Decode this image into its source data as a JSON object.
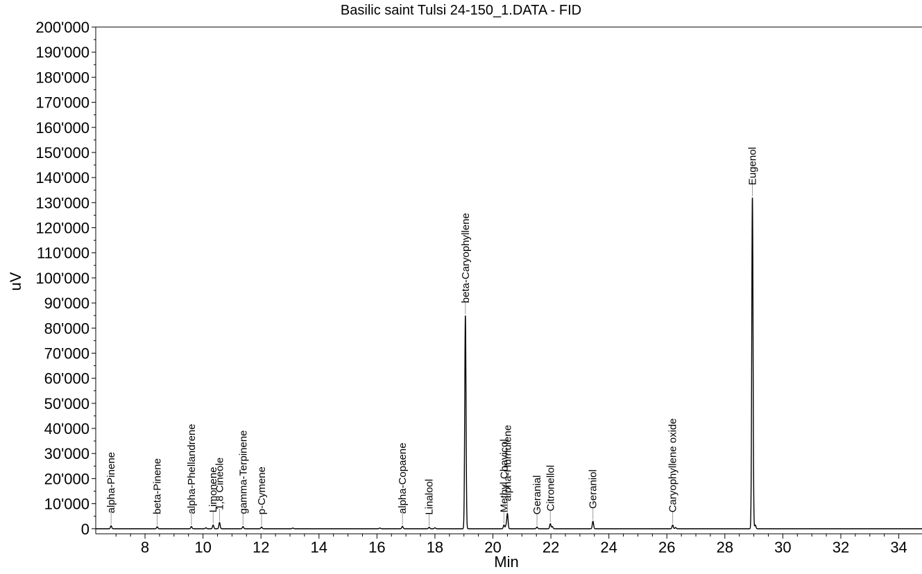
{
  "chart_data": {
    "type": "line",
    "title": "Basilic saint Tulsi 24-150_1.DATA - FID",
    "xlabel": "Min",
    "ylabel": "uV",
    "xlim": [
      6.3,
      34.8
    ],
    "ylim": [
      -2000,
      200000
    ],
    "x_ticks": [
      8,
      10,
      12,
      14,
      16,
      18,
      20,
      22,
      24,
      26,
      28,
      30,
      32,
      34
    ],
    "x_tick_labels": [
      "8",
      "10",
      "12",
      "14",
      "16",
      "18",
      "20",
      "22",
      "24",
      "26",
      "28",
      "30",
      "32",
      "34"
    ],
    "y_ticks": [
      0,
      10000,
      20000,
      30000,
      40000,
      50000,
      60000,
      70000,
      80000,
      90000,
      100000,
      110000,
      120000,
      130000,
      140000,
      150000,
      160000,
      170000,
      180000,
      190000,
      200000
    ],
    "y_tick_labels": [
      "0",
      "10'000",
      "20'000",
      "30'000",
      "40'000",
      "50'000",
      "60'000",
      "70'000",
      "80'000",
      "90'000",
      "100'000",
      "110'000",
      "120'000",
      "130'000",
      "140'000",
      "150'000",
      "160'000",
      "170'000",
      "180'000",
      "190'000",
      "200'000"
    ],
    "grid": false,
    "baseline": 0,
    "color": "#000000",
    "peaks": [
      {
        "name": "alpha-Pinene",
        "rt": 6.83,
        "height": 1200
      },
      {
        "name": "beta-Pinene",
        "rt": 8.42,
        "height": 800
      },
      {
        "name": "alpha-Phellandrene",
        "rt": 9.6,
        "height": 900
      },
      {
        "name": "Limonene",
        "rt": 10.35,
        "height": 1500
      },
      {
        "name": "1,8 Cineole",
        "rt": 10.57,
        "height": 2500
      },
      {
        "name": "gamma-Terpinene",
        "rt": 11.38,
        "height": 900
      },
      {
        "name": "p-Cymene",
        "rt": 12.02,
        "height": 700
      },
      {
        "name": "alpha-Copaene",
        "rt": 16.88,
        "height": 1000
      },
      {
        "name": "Linalool",
        "rt": 17.8,
        "height": 600
      },
      {
        "name": "beta-Caryophyllene",
        "rt": 19.05,
        "height": 85000
      },
      {
        "name": "Methyl Chavicol",
        "rt": 20.38,
        "height": 1500
      },
      {
        "name": "alpha-Humulene",
        "rt": 20.5,
        "height": 6000
      },
      {
        "name": "Geranial",
        "rt": 21.52,
        "height": 700
      },
      {
        "name": "Citronellol",
        "rt": 21.98,
        "height": 2000
      },
      {
        "name": "Geraniol",
        "rt": 23.45,
        "height": 3000
      },
      {
        "name": "Caryophyllene oxide",
        "rt": 26.2,
        "height": 1500
      },
      {
        "name": "Eugenol",
        "rt": 28.95,
        "height": 132000
      }
    ],
    "minor_peaks": [
      {
        "rt": 10.1,
        "height": 400
      },
      {
        "rt": 13.1,
        "height": 300
      },
      {
        "rt": 16.1,
        "height": 300
      },
      {
        "rt": 18.0,
        "height": 400
      },
      {
        "rt": 20.45,
        "height": 1200
      },
      {
        "rt": 22.05,
        "height": 900
      },
      {
        "rt": 26.3,
        "height": 500
      },
      {
        "rt": 29.05,
        "height": 1500
      }
    ]
  }
}
